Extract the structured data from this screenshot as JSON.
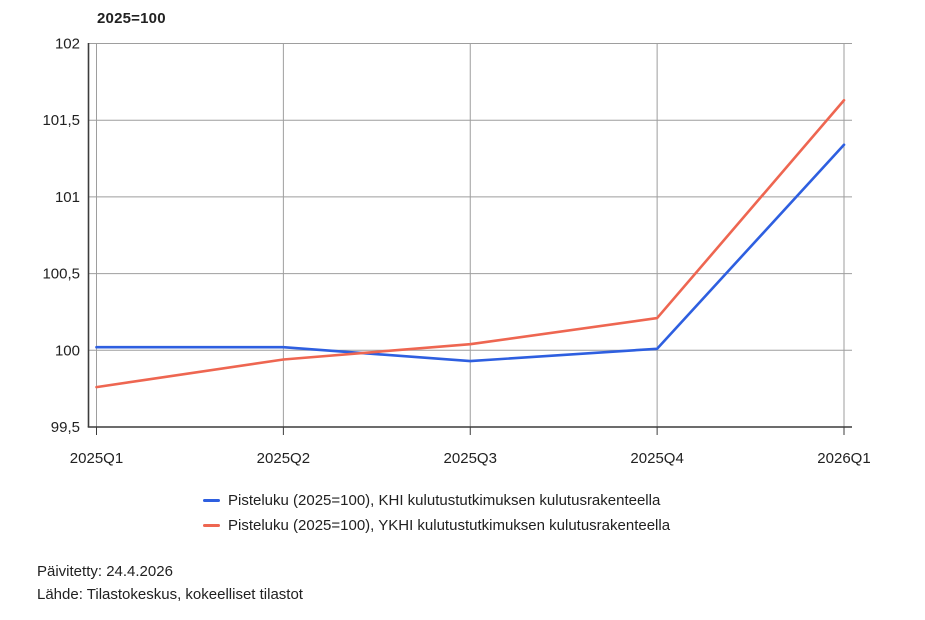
{
  "chart_data": {
    "type": "line",
    "title": "2025=100",
    "categories": [
      "2025Q1",
      "2025Q2",
      "2025Q3",
      "2025Q4",
      "2026Q1"
    ],
    "series": [
      {
        "id": "khi",
        "name": "Pisteluku (2025=100), KHI kulutustutkimuksen kulutusrakenteella",
        "color": "#2e5fe0",
        "values": [
          100.02,
          100.02,
          99.93,
          100.01,
          101.34
        ]
      },
      {
        "id": "ykhi",
        "name": "Pisteluku (2025=100), YKHI kulutustutkimuksen kulutusrakenteella",
        "color": "#ee6651",
        "values": [
          99.76,
          99.94,
          100.04,
          100.21,
          101.63
        ]
      }
    ],
    "ylim": [
      99.5,
      102
    ],
    "yticks": [
      {
        "value": 99.5,
        "label": "99,5"
      },
      {
        "value": 100,
        "label": "100"
      },
      {
        "value": 100.5,
        "label": "100,5"
      },
      {
        "value": 101,
        "label": "101"
      },
      {
        "value": 101.5,
        "label": "101,5"
      },
      {
        "value": 102,
        "label": "102"
      }
    ],
    "grid": true,
    "legend_position": "bottom"
  },
  "style": {
    "grid_color": "#9e9e9e",
    "axis_color": "#3c3c3c",
    "text_color": "#212121",
    "background": "#ffffff"
  },
  "footer": {
    "updated": "Päivitetty: 24.4.2026",
    "source": "Lähde: Tilastokeskus, kokeelliset tilastot"
  }
}
